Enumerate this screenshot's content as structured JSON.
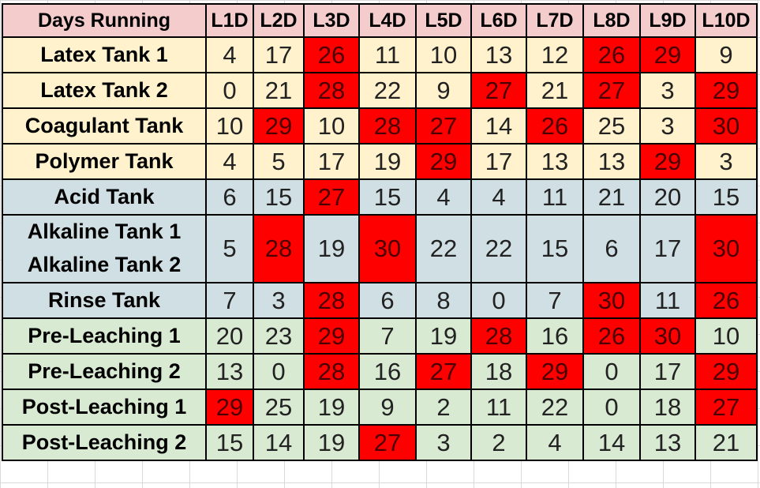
{
  "header": {
    "corner": "Days Running",
    "columns": [
      "L1D",
      "L2D",
      "L3D",
      "L4D",
      "L5D",
      "L6D",
      "L7D",
      "L8D",
      "L9D",
      "L10D"
    ]
  },
  "groups": [
    {
      "color": "#fff2cc",
      "rows": [
        {
          "label": "Latex Tank 1",
          "values": [
            "4",
            "17",
            "26",
            "11",
            "10",
            "13",
            "12",
            "26",
            "29",
            "9"
          ]
        },
        {
          "label": "Latex Tank 2",
          "values": [
            "0",
            "21",
            "28",
            "22",
            "9",
            "27",
            "21",
            "27",
            "3",
            "29"
          ]
        },
        {
          "label": "Coagulant Tank",
          "values": [
            "10",
            "29",
            "10",
            "28",
            "27",
            "14",
            "26",
            "25",
            "3",
            "30"
          ]
        },
        {
          "label": "Polymer Tank",
          "values": [
            "4",
            "5",
            "17",
            "19",
            "29",
            "17",
            "13",
            "13",
            "29",
            "3"
          ]
        }
      ]
    },
    {
      "color": "#d0dfe3",
      "rows": [
        {
          "label": "Acid Tank",
          "values": [
            "6",
            "15",
            "27",
            "15",
            "4",
            "4",
            "11",
            "21",
            "20",
            "15"
          ]
        },
        {
          "label": "Alkaline Tank 1",
          "label2": "Alkaline Tank 2",
          "values": [
            "5",
            "28",
            "19",
            "30",
            "22",
            "22",
            "15",
            "6",
            "17",
            "30"
          ]
        },
        {
          "label": "Rinse Tank",
          "values": [
            "7",
            "3",
            "28",
            "6",
            "8",
            "0",
            "7",
            "30",
            "11",
            "26"
          ]
        }
      ]
    },
    {
      "color": "#d9ead3",
      "rows": [
        {
          "label": "Pre-Leaching 1",
          "values": [
            "20",
            "23",
            "29",
            "7",
            "19",
            "28",
            "16",
            "26",
            "30",
            "10"
          ]
        },
        {
          "label": "Pre-Leaching 2",
          "values": [
            "13",
            "0",
            "28",
            "16",
            "27",
            "18",
            "29",
            "0",
            "17",
            "29"
          ]
        },
        {
          "label": "Post-Leaching 1",
          "values": [
            "29",
            "25",
            "19",
            "9",
            "2",
            "11",
            "22",
            "0",
            "18",
            "27"
          ]
        },
        {
          "label": "Post-Leaching 2",
          "values": [
            "15",
            "14",
            "19",
            "27",
            "3",
            "2",
            "4",
            "14",
            "13",
            "21"
          ]
        }
      ]
    }
  ],
  "highlight": {
    "color": "#ff0000",
    "threshold": 25
  }
}
